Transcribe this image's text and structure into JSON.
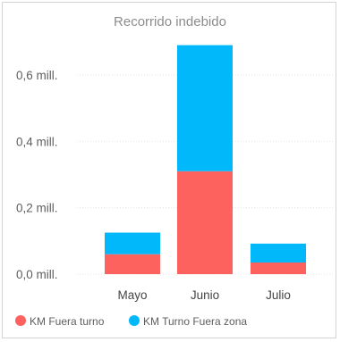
{
  "chart_data": {
    "type": "bar",
    "stacked": true,
    "title": "Recorrido indebido",
    "categories": [
      "Mayo",
      "Junio",
      "Julio"
    ],
    "series": [
      {
        "name": "KM Fuera turno",
        "color": "#fd625e",
        "values": [
          0.06,
          0.31,
          0.035
        ]
      },
      {
        "name": "KM Turno Fuera zona",
        "color": "#01b8fa",
        "values": [
          0.065,
          0.38,
          0.057
        ]
      }
    ],
    "y_ticks": [
      {
        "value": 0.0,
        "label": "0,0 mill."
      },
      {
        "value": 0.2,
        "label": "0,2 mill."
      },
      {
        "value": 0.4,
        "label": "0,4 mill."
      },
      {
        "value": 0.6,
        "label": "0,6 mill."
      }
    ],
    "ylim": [
      0,
      0.7
    ],
    "grid": true,
    "legend_position": "bottom-left"
  }
}
